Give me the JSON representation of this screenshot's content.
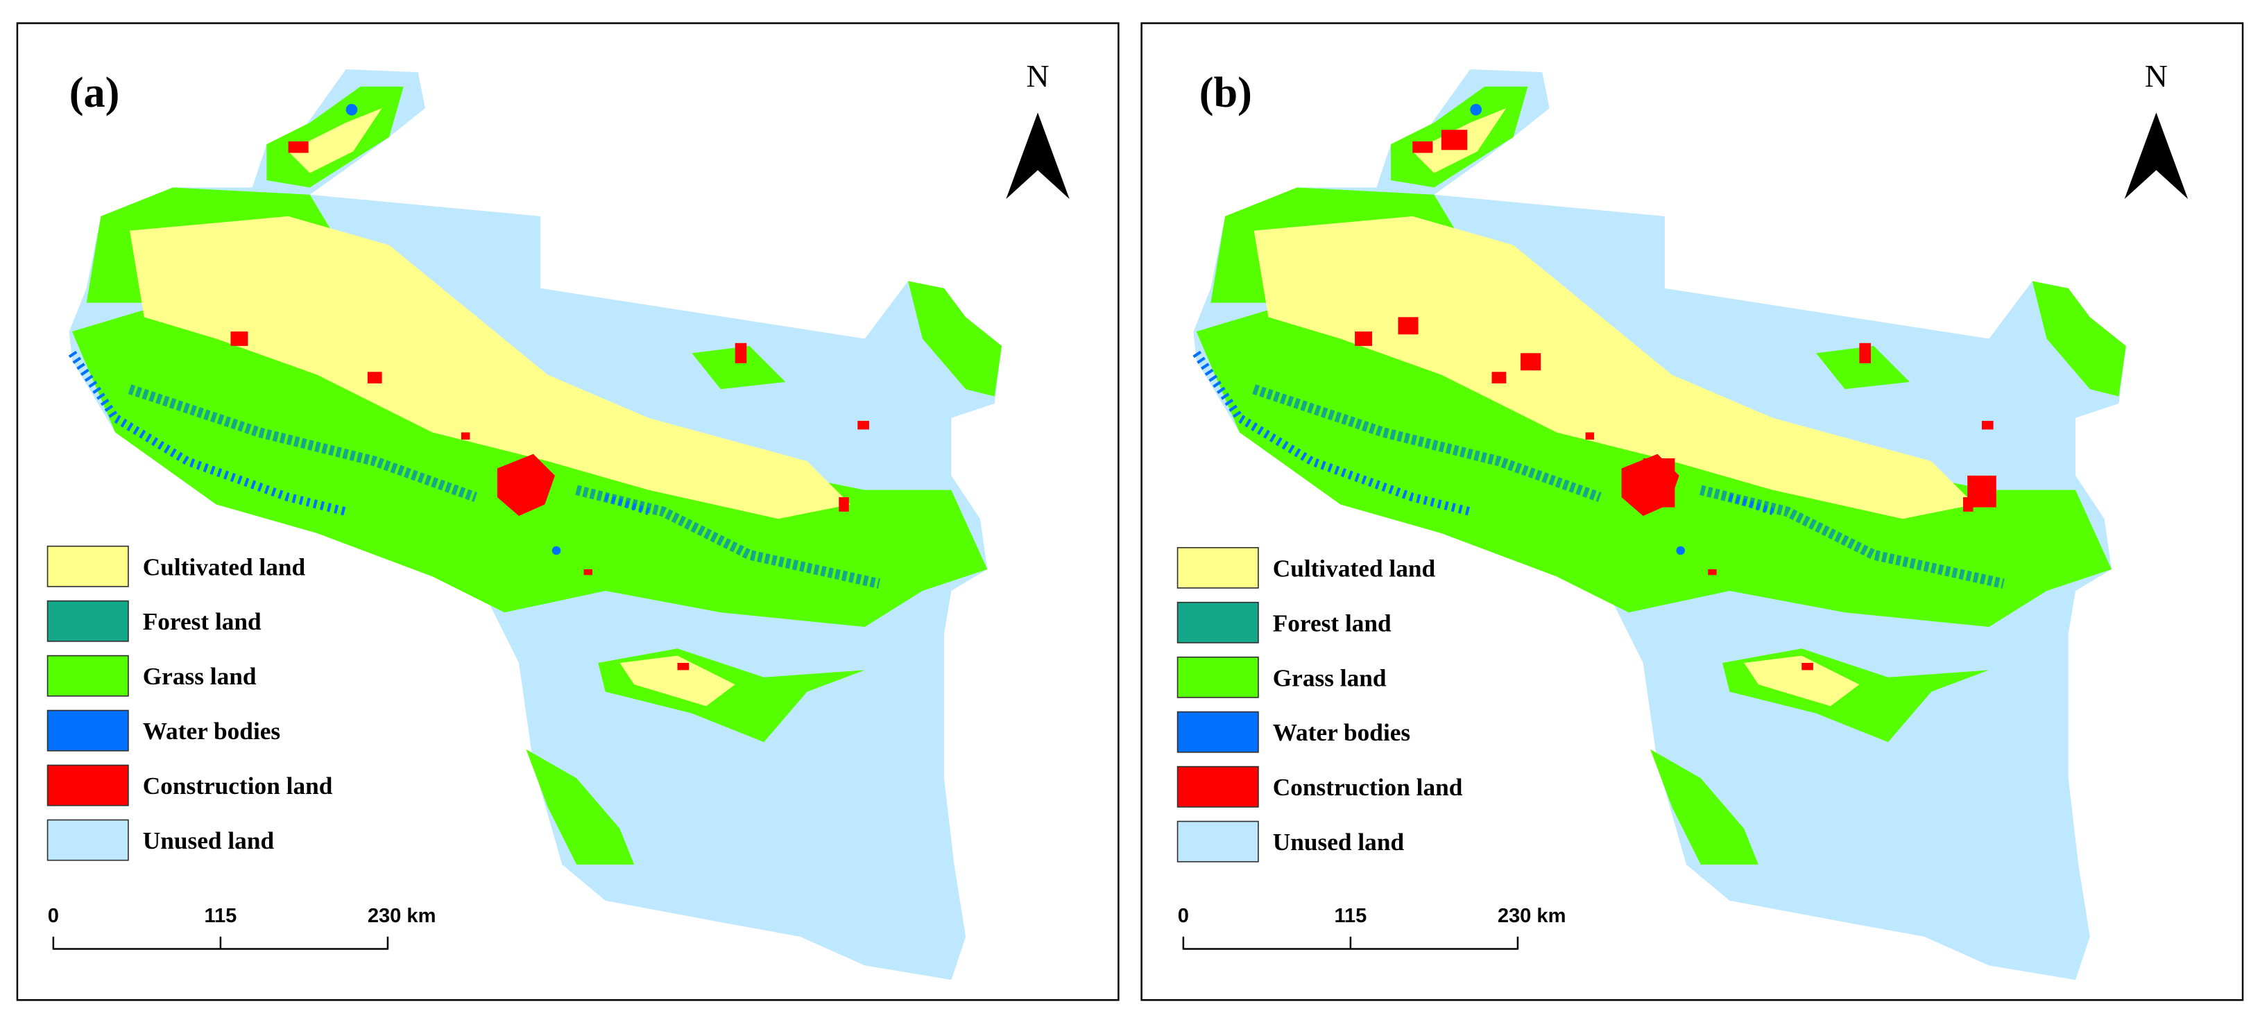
{
  "panels": [
    {
      "label": "(a)",
      "north": "N",
      "legend": [
        {
          "name": "Cultivated land",
          "color": "#ffff8c"
        },
        {
          "name": "Forest land",
          "color": "#14a88a"
        },
        {
          "name": "Grass land",
          "color": "#55ff00"
        },
        {
          "name": "Water bodies",
          "color": "#0070ff"
        },
        {
          "name": "Construction land",
          "color": "#ff0000"
        },
        {
          "name": "Unused land",
          "color": "#bee8ff"
        }
      ],
      "scale": [
        "0",
        "115",
        "230 km"
      ]
    },
    {
      "label": "(b)",
      "north": "N",
      "legend": [
        {
          "name": "Cultivated land",
          "color": "#ffff8c"
        },
        {
          "name": "Forest land",
          "color": "#14a88a"
        },
        {
          "name": "Grass land",
          "color": "#55ff00"
        },
        {
          "name": "Water bodies",
          "color": "#0070ff"
        },
        {
          "name": "Construction land",
          "color": "#ff0000"
        },
        {
          "name": "Unused land",
          "color": "#bee8ff"
        }
      ],
      "scale": [
        "0",
        "115",
        "230 km"
      ]
    }
  ]
}
